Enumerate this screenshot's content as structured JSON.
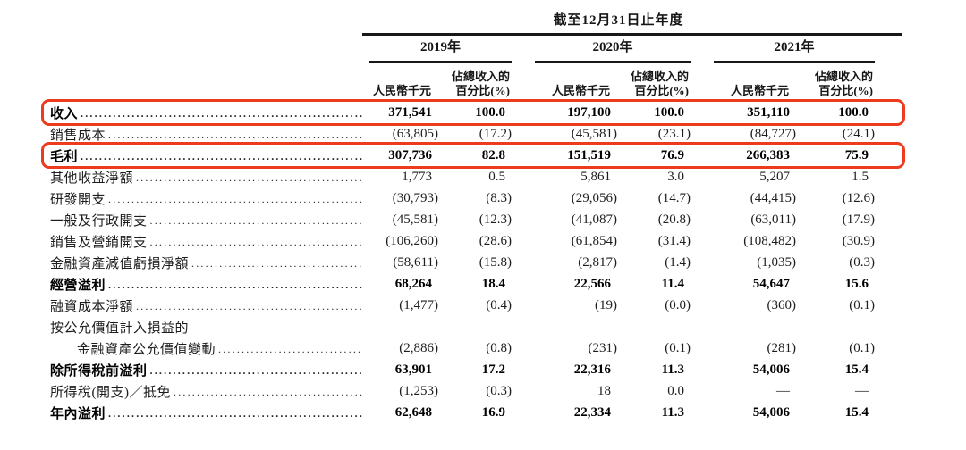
{
  "page": {
    "background": "#ffffff",
    "highlight_color": "#ec3b1f"
  },
  "table": {
    "period_title": "截至12月31日止年度",
    "col_groups": [
      {
        "year": "2019年"
      },
      {
        "year": "2020年"
      },
      {
        "year": "2021年"
      }
    ],
    "subheaders": {
      "amount": "人民幣千元",
      "pct_line1": "佔總收入的",
      "pct_line2": "百分比(%)"
    },
    "rows": [
      {
        "label": "收入",
        "bold": true,
        "highlight": true,
        "values": [
          "371,541",
          "100.0",
          "197,100",
          "100.0",
          "351,110",
          "100.0"
        ]
      },
      {
        "label": "銷售成本",
        "values": [
          "(63,805)",
          "(17.2)",
          "(45,581)",
          "(23.1)",
          "(84,727)",
          "(24.1)"
        ]
      },
      {
        "label": "毛利",
        "bold": true,
        "highlight": true,
        "values": [
          "307,736",
          "82.8",
          "151,519",
          "76.9",
          "266,383",
          "75.9"
        ]
      },
      {
        "label": "其他收益淨額",
        "values": [
          "1,773",
          "0.5",
          "5,861",
          "3.0",
          "5,207",
          "1.5"
        ]
      },
      {
        "label": "研發開支",
        "values": [
          "(30,793)",
          "(8.3)",
          "(29,056)",
          "(14.7)",
          "(44,415)",
          "(12.6)"
        ]
      },
      {
        "label": "一般及行政開支",
        "values": [
          "(45,581)",
          "(12.3)",
          "(41,087)",
          "(20.8)",
          "(63,011)",
          "(17.9)"
        ]
      },
      {
        "label": "銷售及營銷開支",
        "values": [
          "(106,260)",
          "(28.6)",
          "(61,854)",
          "(31.4)",
          "(108,482)",
          "(30.9)"
        ]
      },
      {
        "label": "金融資產減值虧損淨額",
        "values": [
          "(58,611)",
          "(15.8)",
          "(2,817)",
          "(1.4)",
          "(1,035)",
          "(0.3)"
        ]
      },
      {
        "label": "經營溢利",
        "bold": true,
        "values": [
          "68,264",
          "18.4",
          "22,566",
          "11.4",
          "54,647",
          "15.6"
        ]
      },
      {
        "label": "融資成本淨額",
        "values": [
          "(1,477)",
          "(0.4)",
          "(19)",
          "(0.0)",
          "(360)",
          "(0.1)"
        ]
      },
      {
        "label": "按公允價值計入損益的",
        "no_dots": true,
        "values": [
          "",
          "",
          "",
          "",
          "",
          ""
        ]
      },
      {
        "label": "金融資產公允價值變動",
        "indent": true,
        "values": [
          "(2,886)",
          "(0.8)",
          "(231)",
          "(0.1)",
          "(281)",
          "(0.1)"
        ]
      },
      {
        "label": "除所得稅前溢利",
        "bold": true,
        "values": [
          "63,901",
          "17.2",
          "22,316",
          "11.3",
          "54,006",
          "15.4"
        ]
      },
      {
        "label": "所得稅(開支)／抵免",
        "values": [
          "(1,253)",
          "(0.3)",
          "18",
          "0.0",
          "—",
          "—"
        ]
      },
      {
        "label": "年內溢利",
        "bold": true,
        "values": [
          "62,648",
          "16.9",
          "22,334",
          "11.3",
          "54,006",
          "15.4"
        ]
      }
    ]
  }
}
